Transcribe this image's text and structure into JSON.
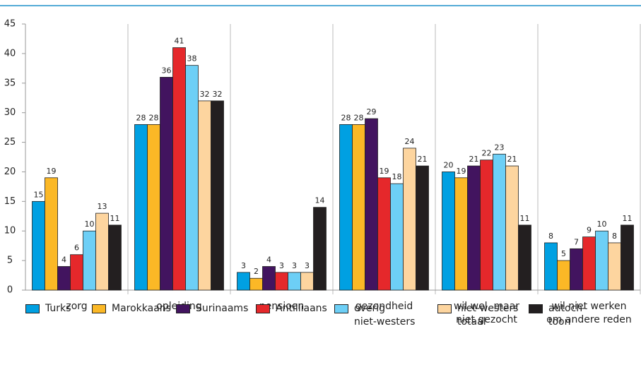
{
  "chart_data": {
    "type": "bar",
    "categories": [
      "zorg",
      "opleiding",
      "pensioen",
      "gezondheid",
      "wil wel, maar\nniet gezocht",
      "wil niet werken\nom andere reden"
    ],
    "series": [
      {
        "name": "Turks",
        "color": "#00a0e2",
        "values": [
          15,
          28,
          3,
          28,
          20,
          8
        ]
      },
      {
        "name": "Marokkaans",
        "color": "#fbb826",
        "values": [
          19,
          28,
          2,
          28,
          19,
          5
        ]
      },
      {
        "name": "Surinaams",
        "color": "#42145f",
        "values": [
          4,
          36,
          4,
          29,
          21,
          7
        ]
      },
      {
        "name": "Antilliaans",
        "color": "#e5282b",
        "values": [
          6,
          41,
          3,
          19,
          22,
          9
        ]
      },
      {
        "name": "overig\nniet-westers",
        "color": "#6dcff6",
        "values": [
          10,
          38,
          3,
          18,
          23,
          10
        ]
      },
      {
        "name": "niet-westers\ntotaal",
        "color": "#fdd59f",
        "values": [
          13,
          32,
          3,
          24,
          21,
          8
        ]
      },
      {
        "name": "autoch-\ntoon",
        "color": "#231f20",
        "values": [
          11,
          32,
          14,
          21,
          11,
          11
        ]
      }
    ],
    "ylim": [
      0,
      45
    ],
    "yticks": [
      0,
      5,
      10,
      15,
      20,
      25,
      30,
      35,
      40,
      45
    ],
    "grid": true
  }
}
